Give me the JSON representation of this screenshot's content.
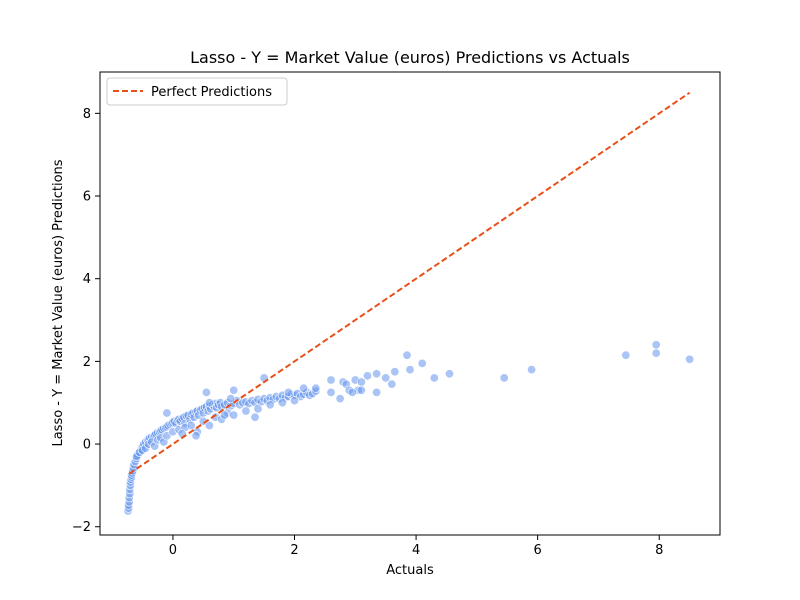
{
  "chart_data": {
    "type": "scatter",
    "title": "Lasso - Y = Market Value (euros) Predictions vs Actuals",
    "xlabel": "Actuals",
    "ylabel": "Lasso - Y = Market Value (euros) Predictions",
    "xlim": [
      -1.2,
      9.0
    ],
    "ylim": [
      -2.2,
      9.0
    ],
    "xticks": [
      0,
      2,
      4,
      6,
      8
    ],
    "yticks": [
      -2,
      0,
      2,
      4,
      6,
      8
    ],
    "xtick_labels": [
      "0",
      "2",
      "4",
      "6",
      "8"
    ],
    "ytick_labels": [
      "−2",
      "0",
      "2",
      "4",
      "6",
      "8"
    ],
    "grid": false,
    "legend": {
      "position": "top-left",
      "entries": [
        "Perfect Predictions"
      ]
    },
    "reference_line": {
      "name": "Perfect Predictions",
      "x": [
        -0.72,
        8.5
      ],
      "y": [
        -0.72,
        8.5
      ],
      "color": "#e8501a",
      "style": "dashed"
    },
    "series": [
      {
        "color": "#6495ED",
        "x": [
          -0.74,
          -0.73,
          -0.73,
          -0.72,
          -0.72,
          -0.71,
          -0.71,
          -0.7,
          -0.7,
          -0.69,
          -0.68,
          -0.68,
          -0.67,
          -0.66,
          -0.65,
          -0.64,
          -0.62,
          -0.6,
          -0.58,
          -0.55,
          -0.52,
          -0.5,
          -0.48,
          -0.45,
          -0.42,
          -0.4,
          -0.38,
          -0.35,
          -0.32,
          -0.3,
          -0.28,
          -0.25,
          -0.22,
          -0.2,
          -0.18,
          -0.15,
          -0.12,
          -0.1,
          -0.08,
          -0.05,
          -0.02,
          0.0,
          0.02,
          0.05,
          0.08,
          0.1,
          0.12,
          0.15,
          0.18,
          0.2,
          0.22,
          0.25,
          0.28,
          0.3,
          0.33,
          0.35,
          0.38,
          0.4,
          0.42,
          0.45,
          0.48,
          0.5,
          0.52,
          0.55,
          0.58,
          0.6,
          0.62,
          0.65,
          0.68,
          0.7,
          0.72,
          0.75,
          0.78,
          0.8,
          0.85,
          0.9,
          0.95,
          1.0,
          1.05,
          1.1,
          1.15,
          1.2,
          1.25,
          1.3,
          1.35,
          1.4,
          1.45,
          1.5,
          1.55,
          1.6,
          1.65,
          1.7,
          1.75,
          1.8,
          1.85,
          1.9,
          1.95,
          2.0,
          2.05,
          2.1,
          2.15,
          2.2,
          2.25,
          2.3,
          2.35,
          -0.6,
          -0.55,
          -0.5,
          -0.45,
          -0.4,
          -0.35,
          -0.3,
          -0.25,
          -0.2,
          -0.15,
          -0.1,
          0.0,
          0.1,
          0.2,
          0.3,
          0.4,
          0.5,
          0.6,
          0.7,
          0.8,
          0.9,
          1.0,
          1.2,
          1.4,
          1.6,
          1.8,
          2.0,
          -0.1,
          0.15,
          0.38,
          0.55,
          0.85,
          1.0,
          1.35,
          2.35,
          2.6,
          2.8,
          2.85,
          2.9,
          3.0,
          3.1,
          3.2,
          3.35,
          3.5,
          3.65,
          3.85,
          4.1,
          4.3,
          4.55,
          5.45,
          5.9,
          7.45,
          7.95,
          7.95,
          8.5,
          2.75,
          2.6,
          3.05,
          3.35,
          3.6,
          3.9,
          2.95,
          3.1,
          0.6,
          0.95,
          1.5,
          1.9,
          2.15
        ],
        "y": [
          -1.62,
          -1.55,
          -1.48,
          -1.4,
          -1.3,
          -1.2,
          -1.1,
          -1.0,
          -0.92,
          -0.85,
          -0.8,
          -0.75,
          -0.7,
          -0.65,
          -0.58,
          -0.5,
          -0.42,
          -0.35,
          -0.28,
          -0.2,
          -0.12,
          -0.05,
          0.0,
          0.05,
          0.1,
          0.12,
          0.15,
          0.18,
          0.2,
          0.22,
          0.25,
          0.28,
          0.3,
          0.32,
          0.35,
          0.38,
          0.4,
          0.42,
          0.45,
          0.48,
          0.5,
          0.52,
          0.55,
          0.5,
          0.58,
          0.6,
          0.55,
          0.62,
          0.65,
          0.5,
          0.68,
          0.7,
          0.6,
          0.72,
          0.75,
          0.65,
          0.78,
          0.8,
          0.7,
          0.82,
          0.85,
          0.75,
          0.88,
          0.9,
          0.8,
          0.92,
          0.85,
          0.95,
          0.9,
          0.98,
          0.88,
          0.95,
          1.0,
          0.9,
          0.95,
          1.0,
          0.92,
          0.98,
          1.05,
          0.95,
          1.0,
          1.02,
          0.98,
          1.05,
          1.0,
          1.08,
          1.02,
          1.1,
          1.05,
          1.12,
          1.08,
          1.15,
          1.1,
          1.18,
          1.12,
          1.15,
          1.2,
          1.18,
          1.22,
          1.15,
          1.2,
          1.25,
          1.18,
          1.22,
          1.28,
          -0.3,
          -0.2,
          -0.15,
          -0.1,
          0.0,
          0.05,
          -0.05,
          0.1,
          0.15,
          0.05,
          0.2,
          0.3,
          0.35,
          0.4,
          0.45,
          0.3,
          0.55,
          0.45,
          0.65,
          0.6,
          0.75,
          0.7,
          0.8,
          0.85,
          0.95,
          1.0,
          1.05,
          0.75,
          0.25,
          0.2,
          1.25,
          0.7,
          1.3,
          0.65,
          1.35,
          1.55,
          1.5,
          1.45,
          1.3,
          1.55,
          1.5,
          1.65,
          1.7,
          1.6,
          1.75,
          2.15,
          1.95,
          1.6,
          1.7,
          1.6,
          1.8,
          2.15,
          2.4,
          2.2,
          2.05,
          1.1,
          1.25,
          1.3,
          1.25,
          1.45,
          1.8,
          1.25,
          1.3,
          1.0,
          1.1,
          1.6,
          1.25,
          1.35
        ]
      }
    ]
  }
}
